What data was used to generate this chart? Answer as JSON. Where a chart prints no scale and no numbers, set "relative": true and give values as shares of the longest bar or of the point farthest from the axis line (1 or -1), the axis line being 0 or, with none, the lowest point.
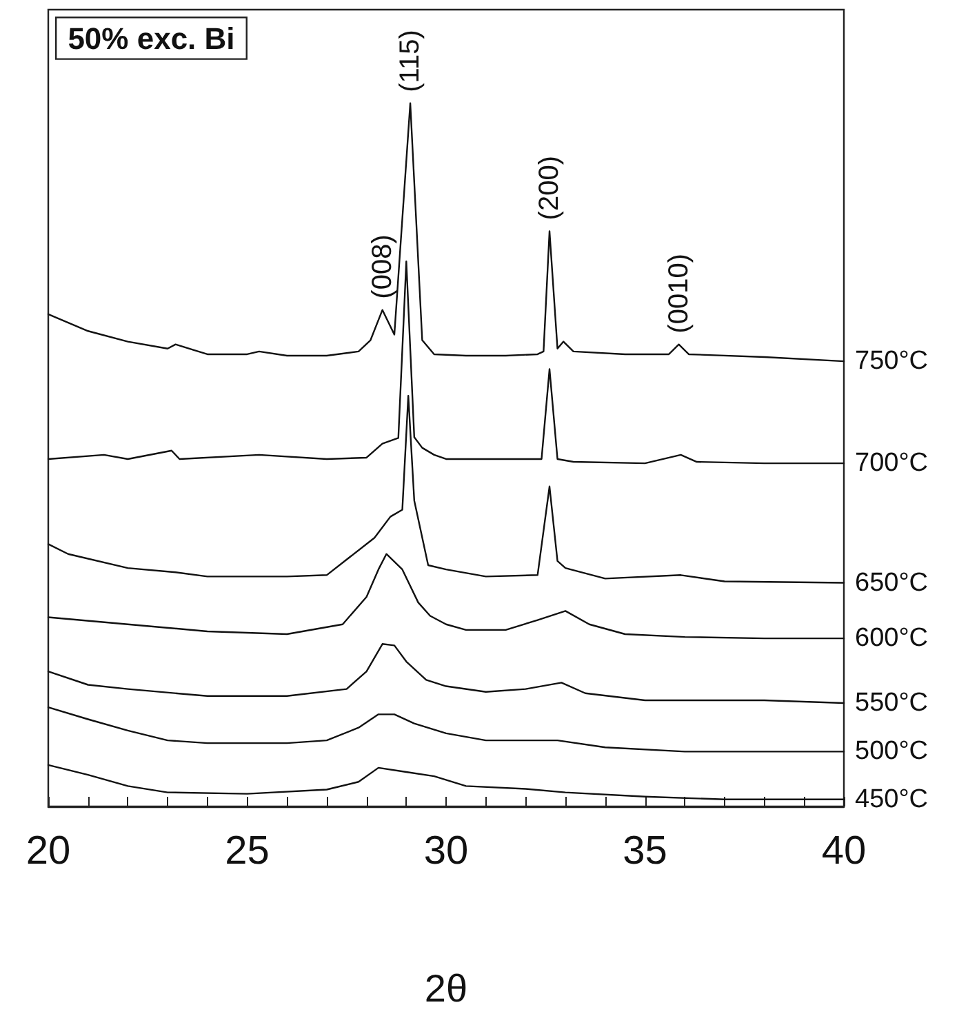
{
  "chart_data": {
    "type": "line",
    "relative": true,
    "xlabel": "2θ",
    "xlim": [
      20,
      40
    ],
    "xticks": [
      20,
      {
        "value": 21,
        "label": null
      },
      {
        "value": 22,
        "label": null
      },
      {
        "value": 23,
        "label": null
      },
      {
        "value": 24,
        "label": null
      },
      25,
      {
        "value": 26,
        "label": null
      },
      {
        "value": 27,
        "label": null
      },
      {
        "value": 28,
        "label": null
      },
      {
        "value": 29,
        "label": null
      },
      30,
      {
        "value": 31,
        "label": null
      },
      {
        "value": 32,
        "label": null
      },
      {
        "value": 33,
        "label": null
      },
      {
        "value": 34,
        "label": null
      },
      35,
      {
        "value": 36,
        "label": null
      },
      {
        "value": 37,
        "label": null
      },
      {
        "value": 38,
        "label": null
      },
      {
        "value": 39,
        "label": null
      },
      40
    ],
    "grid": false,
    "legend": false,
    "marker": "none",
    "line_style": "solid",
    "annotations": [
      "50% exc. Bi",
      {
        "text": "(008)",
        "x": 28.4,
        "y": 0.706
      },
      {
        "text": "(115)",
        "x": 29.1,
        "y": 1.0
      },
      {
        "text": "(200)",
        "x": 32.6,
        "y": 0.818
      },
      {
        "text": "(0010)",
        "x": 35.85,
        "y": 0.657
      }
    ],
    "series": [
      {
        "name": "750°C",
        "color": "#111111",
        "x": [
          20,
          21,
          22,
          23,
          23.2,
          24,
          25,
          25.3,
          26,
          27,
          27.8,
          28.1,
          28.4,
          28.7,
          29.1,
          29.4,
          29.7,
          30.5,
          31.5,
          32.3,
          32.45,
          32.6,
          32.8,
          32.95,
          33.2,
          34.5,
          35.6,
          35.85,
          36.1,
          38,
          40
        ],
        "values": [
          0.7,
          0.676,
          0.661,
          0.651,
          0.657,
          0.643,
          0.643,
          0.647,
          0.641,
          0.641,
          0.647,
          0.663,
          0.706,
          0.671,
          1.0,
          0.663,
          0.643,
          0.641,
          0.641,
          0.643,
          0.647,
          0.818,
          0.651,
          0.661,
          0.647,
          0.643,
          0.643,
          0.657,
          0.643,
          0.639,
          0.633
        ]
      },
      {
        "name": "700°C",
        "color": "#111111",
        "x": [
          20,
          21.4,
          22,
          23.1,
          23.3,
          25.3,
          27,
          28,
          28.4,
          28.8,
          29.0,
          29.2,
          29.4,
          29.7,
          30,
          31,
          32.4,
          32.6,
          32.8,
          33.2,
          35,
          35.9,
          36.3,
          38,
          40
        ],
        "values": [
          0.494,
          0.5,
          0.494,
          0.506,
          0.494,
          0.5,
          0.494,
          0.496,
          0.516,
          0.524,
          0.775,
          0.525,
          0.51,
          0.5,
          0.494,
          0.494,
          0.494,
          0.622,
          0.494,
          0.49,
          0.488,
          0.5,
          0.49,
          0.488,
          0.488
        ]
      },
      {
        "name": "650°C",
        "color": "#111111",
        "x": [
          20,
          20.5,
          22,
          23.2,
          24,
          26,
          27,
          28.2,
          28.6,
          28.9,
          29.05,
          29.2,
          29.55,
          30,
          31,
          32.3,
          32.6,
          32.8,
          33,
          34,
          35.9,
          37,
          40
        ],
        "values": [
          0.373,
          0.359,
          0.339,
          0.333,
          0.327,
          0.327,
          0.329,
          0.382,
          0.412,
          0.422,
          0.584,
          0.435,
          0.343,
          0.337,
          0.327,
          0.329,
          0.455,
          0.349,
          0.339,
          0.324,
          0.329,
          0.32,
          0.318
        ]
      },
      {
        "name": "600°C",
        "color": "#111111",
        "x": [
          20,
          22,
          24,
          26,
          27.4,
          28,
          28.3,
          28.5,
          28.9,
          29.3,
          29.6,
          30,
          30.5,
          31.5,
          32.3,
          33,
          33.6,
          34.5,
          36,
          38,
          40
        ],
        "values": [
          0.269,
          0.259,
          0.249,
          0.245,
          0.259,
          0.298,
          0.337,
          0.359,
          0.337,
          0.29,
          0.271,
          0.259,
          0.251,
          0.251,
          0.265,
          0.278,
          0.259,
          0.245,
          0.241,
          0.239,
          0.239
        ]
      },
      {
        "name": "550°C",
        "color": "#111111",
        "x": [
          20,
          21,
          22,
          24,
          26,
          27.5,
          28,
          28.4,
          28.7,
          29,
          29.5,
          30,
          31,
          32,
          32.9,
          33.5,
          35,
          36.5,
          38,
          40
        ],
        "values": [
          0.192,
          0.173,
          0.167,
          0.157,
          0.157,
          0.167,
          0.192,
          0.231,
          0.229,
          0.206,
          0.18,
          0.171,
          0.163,
          0.167,
          0.176,
          0.161,
          0.151,
          0.151,
          0.151,
          0.147
        ]
      },
      {
        "name": "500°C",
        "color": "#111111",
        "x": [
          20,
          21,
          22,
          23,
          24,
          26,
          27,
          27.8,
          28.3,
          28.7,
          29.2,
          30,
          31,
          32.8,
          34,
          36,
          40
        ],
        "values": [
          0.141,
          0.124,
          0.108,
          0.094,
          0.09,
          0.09,
          0.094,
          0.112,
          0.131,
          0.131,
          0.118,
          0.104,
          0.094,
          0.094,
          0.084,
          0.078,
          0.078
        ]
      },
      {
        "name": "450°C",
        "color": "#111111",
        "x": [
          20,
          21,
          22,
          23,
          25,
          27,
          27.8,
          28.3,
          29,
          29.7,
          30.5,
          32,
          33,
          35,
          37,
          40
        ],
        "values": [
          0.059,
          0.045,
          0.029,
          0.02,
          0.018,
          0.024,
          0.035,
          0.055,
          0.049,
          0.043,
          0.029,
          0.025,
          0.02,
          0.014,
          0.01,
          0.01
        ]
      }
    ]
  }
}
